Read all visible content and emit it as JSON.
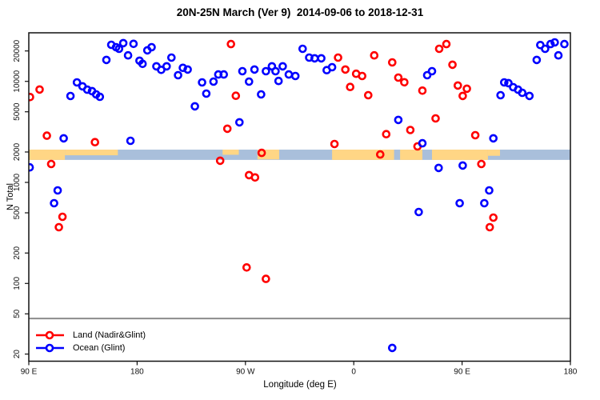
{
  "chart_data": {
    "type": "scatter",
    "title": "20N-25N March (Ver 9)  2014-09-06 to 2018-12-31",
    "x_axis": {
      "title": "Longitude (deg E)",
      "range_wrapped_deg": [
        90,
        540
      ],
      "ticks": [
        {
          "lon": 90,
          "label": "90 E"
        },
        {
          "lon": 180,
          "label": "180"
        },
        {
          "lon": 270,
          "label": "90 W"
        },
        {
          "lon": 360,
          "label": "0"
        },
        {
          "lon": 450,
          "label": "90 E"
        },
        {
          "lon": 540,
          "label": "180"
        }
      ]
    },
    "y_axis": {
      "title": "N Total",
      "scale": "log",
      "range": [
        17,
        30000
      ],
      "ticks": [
        20000,
        10000,
        5000,
        2000,
        1000,
        500,
        200,
        100,
        50,
        20
      ]
    },
    "reference_line": {
      "value": 45,
      "color": "#8C8C8C"
    },
    "land_ocean_strip": {
      "value_range": [
        1670,
        2110
      ],
      "ocean_color": "#A9BFDB",
      "land_color": "#FFD685",
      "land_segments": [
        {
          "from": 90,
          "to": 120,
          "height_frac": 1
        },
        {
          "from": 120,
          "to": 164,
          "height_frac": 0.55
        },
        {
          "from": 251,
          "to": 264.5,
          "height_frac": 0.5
        },
        {
          "from": 280,
          "to": 298,
          "height_frac": 0.95
        },
        {
          "from": 342,
          "to": 393.5,
          "height_frac": 1
        },
        {
          "from": 398.5,
          "to": 417,
          "height_frac": 1
        },
        {
          "from": 425,
          "to": 471.5,
          "height_frac": 1
        },
        {
          "from": 471.5,
          "to": 481.5,
          "height_frac": 0.6
        }
      ]
    },
    "series": [
      {
        "name": "Land (Nadir&Glint)",
        "color": "#FF0000",
        "points": [
          [
            99,
            8300
          ],
          [
            91,
            7000
          ],
          [
            105,
            2900
          ],
          [
            145,
            2500
          ],
          [
            258,
            23400
          ],
          [
            262,
            7200
          ],
          [
            255,
            3400
          ],
          [
            283.5,
            1960
          ],
          [
            249,
            1640
          ],
          [
            273,
            1180
          ],
          [
            278,
            1120
          ],
          [
            271,
            144
          ],
          [
            287,
            111
          ],
          [
            347,
            17200
          ],
          [
            353,
            13100
          ],
          [
            362,
            11900
          ],
          [
            367,
            11300
          ],
          [
            377,
            18100
          ],
          [
            392,
            15400
          ],
          [
            397,
            10900
          ],
          [
            402,
            9800
          ],
          [
            357,
            8800
          ],
          [
            372,
            7300
          ],
          [
            417,
            8100
          ],
          [
            428,
            4300
          ],
          [
            407,
            3300
          ],
          [
            387,
            3000
          ],
          [
            344,
            2400
          ],
          [
            413,
            2270
          ],
          [
            382,
            1890
          ],
          [
            437,
            23400
          ],
          [
            431,
            21000
          ],
          [
            442,
            14600
          ],
          [
            446.5,
            9100
          ],
          [
            454,
            8450
          ],
          [
            450.5,
            7170
          ],
          [
            461,
            2930
          ],
          [
            108.6,
            1520
          ],
          [
            118,
            457
          ],
          [
            115,
            360
          ],
          [
            466,
            1520
          ],
          [
            476,
            448
          ],
          [
            473,
            360
          ]
        ]
      },
      {
        "name": "Ocean (Glint)",
        "color": "#0000FF",
        "points": [
          [
            124.6,
            7160
          ],
          [
            130,
            9770
          ],
          [
            134.6,
            8930
          ],
          [
            138.6,
            8280
          ],
          [
            142.5,
            8000
          ],
          [
            146,
            7430
          ],
          [
            149,
            7030
          ],
          [
            119,
            2730
          ],
          [
            158.5,
            23000
          ],
          [
            162.5,
            21800
          ],
          [
            165,
            21000
          ],
          [
            168.5,
            23900
          ],
          [
            172.5,
            18100
          ],
          [
            177,
            23500
          ],
          [
            154.5,
            16300
          ],
          [
            182,
            16000
          ],
          [
            184.5,
            14900
          ],
          [
            188.5,
            20300
          ],
          [
            192,
            21800
          ],
          [
            196,
            14100
          ],
          [
            200,
            13000
          ],
          [
            174.5,
            2580
          ],
          [
            208.5,
            17200
          ],
          [
            204.5,
            14100
          ],
          [
            214,
            11500
          ],
          [
            218,
            13600
          ],
          [
            222,
            13100
          ],
          [
            234,
            9770
          ],
          [
            243.5,
            9950
          ],
          [
            247.5,
            11700
          ],
          [
            252,
            11700
          ],
          [
            237.5,
            7560
          ],
          [
            228,
            5660
          ],
          [
            267.5,
            12600
          ],
          [
            273,
            9950
          ],
          [
            277.5,
            13100
          ],
          [
            287,
            12600
          ],
          [
            292,
            14100
          ],
          [
            295,
            12600
          ],
          [
            301,
            14100
          ],
          [
            297.5,
            10100
          ],
          [
            306,
            11700
          ],
          [
            311.5,
            11300
          ],
          [
            283,
            7430
          ],
          [
            265,
            3930
          ],
          [
            317.5,
            21000
          ],
          [
            323,
            17200
          ],
          [
            327.5,
            16900
          ],
          [
            333,
            16900
          ],
          [
            337.5,
            12900
          ],
          [
            342,
            13800
          ],
          [
            397,
            4150
          ],
          [
            421,
            11500
          ],
          [
            425,
            12600
          ],
          [
            417,
            2440
          ],
          [
            512,
            16300
          ],
          [
            515,
            22900
          ],
          [
            519,
            21000
          ],
          [
            523.5,
            23400
          ],
          [
            527,
            24300
          ],
          [
            530,
            18100
          ],
          [
            535,
            23400
          ],
          [
            485,
            9770
          ],
          [
            488.5,
            9600
          ],
          [
            492.5,
            8750
          ],
          [
            496.5,
            8280
          ],
          [
            500,
            7700
          ],
          [
            506,
            7170
          ],
          [
            482,
            7300
          ],
          [
            476,
            2730
          ],
          [
            90.7,
            1410
          ],
          [
            114,
            833
          ],
          [
            111,
            623
          ],
          [
            430.5,
            1390
          ],
          [
            450.5,
            1470
          ],
          [
            472.5,
            833
          ],
          [
            448,
            623
          ],
          [
            468.5,
            623
          ],
          [
            414,
            509
          ],
          [
            392,
            23
          ]
        ]
      }
    ],
    "legend": {
      "position": "bottom-left"
    }
  }
}
